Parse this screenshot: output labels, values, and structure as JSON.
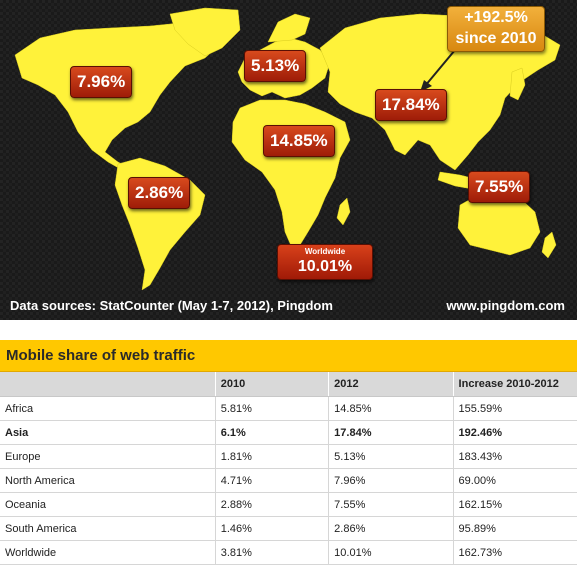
{
  "map": {
    "callout": {
      "line1": "+192.5%",
      "line2": "since 2010"
    },
    "labels": {
      "north_america": "7.96%",
      "europe": "5.13%",
      "asia": "17.84%",
      "africa": "14.85%",
      "south_america": "2.86%",
      "oceania": "7.55%"
    },
    "worldwide": {
      "title": "Worldwide",
      "value": "10.01%"
    },
    "sources": "Data sources: StatCounter (May 1-7, 2012), Pingdom",
    "site": "www.pingdom.com",
    "colors": {
      "land": "#fff23a",
      "background": "#1b1b1b",
      "label": "#b82a0e",
      "callout": "#e89a1e"
    }
  },
  "table": {
    "title": "Mobile share of web traffic",
    "columns": [
      "",
      "2010",
      "2012",
      "Increase 2010-2012"
    ],
    "rows": [
      {
        "region": "Africa",
        "y2010": "5.81%",
        "y2012": "14.85%",
        "increase": "155.59%",
        "bold": false
      },
      {
        "region": "Asia",
        "y2010": "6.1%",
        "y2012": "17.84%",
        "increase": "192.46%",
        "bold": true
      },
      {
        "region": "Europe",
        "y2010": "1.81%",
        "y2012": "5.13%",
        "increase": "183.43%",
        "bold": false
      },
      {
        "region": "North America",
        "y2010": "4.71%",
        "y2012": "7.96%",
        "increase": "69.00%",
        "bold": false
      },
      {
        "region": "Oceania",
        "y2010": "2.88%",
        "y2012": "7.55%",
        "increase": "162.15%",
        "bold": false
      },
      {
        "region": "South America",
        "y2010": "1.46%",
        "y2012": "2.86%",
        "increase": "95.89%",
        "bold": false
      },
      {
        "region": "Worldwide",
        "y2010": "3.81%",
        "y2012": "10.01%",
        "increase": "162.73%",
        "bold": false
      }
    ]
  },
  "chart_data": {
    "type": "table",
    "title": "Mobile share of web traffic",
    "categories": [
      "Africa",
      "Asia",
      "Europe",
      "North America",
      "Oceania",
      "South America",
      "Worldwide"
    ],
    "series": [
      {
        "name": "2010",
        "values": [
          5.81,
          6.1,
          1.81,
          4.71,
          2.88,
          1.46,
          3.81
        ]
      },
      {
        "name": "2012",
        "values": [
          14.85,
          17.84,
          5.13,
          7.96,
          7.55,
          2.86,
          10.01
        ]
      },
      {
        "name": "Increase 2010-2012",
        "values": [
          155.59,
          192.46,
          183.43,
          69.0,
          162.15,
          95.89,
          162.73
        ]
      }
    ]
  }
}
